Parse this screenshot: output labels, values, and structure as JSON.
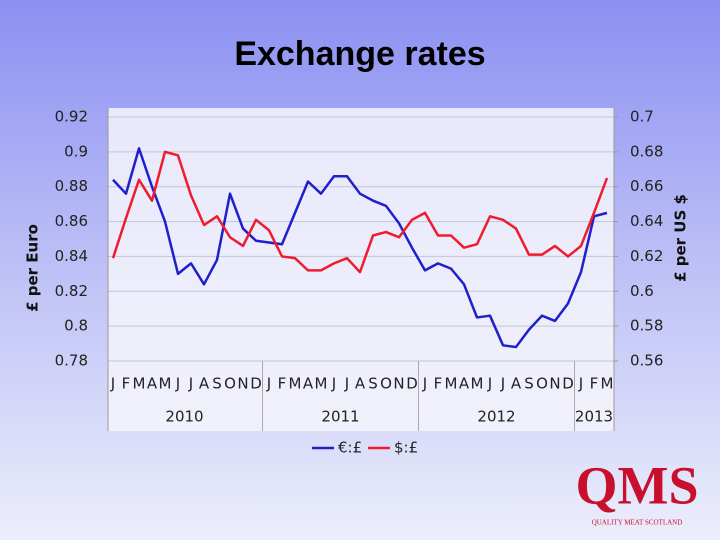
{
  "chart_data": {
    "type": "line",
    "title": "Exchange rates",
    "y_label": "£ per Euro",
    "y2_label": "£ per US $",
    "categories": [
      "J",
      "F",
      "M",
      "A",
      "M",
      "J",
      "J",
      "A",
      "S",
      "O",
      "N",
      "D",
      "J",
      "F",
      "M",
      "A",
      "M",
      "J",
      "J",
      "A",
      "S",
      "O",
      "N",
      "D",
      "J",
      "F",
      "M",
      "A",
      "M",
      "J",
      "J",
      "A",
      "S",
      "O",
      "N",
      "D",
      "J",
      "F",
      "M"
    ],
    "years": [
      "2010",
      "2011",
      "2012",
      "2013"
    ],
    "series": [
      {
        "name": "€:£",
        "color": "#1f1fcc",
        "values": [
          0.884,
          0.876,
          0.902,
          0.88,
          0.86,
          0.83,
          0.836,
          0.824,
          0.838,
          0.876,
          0.856,
          0.849,
          0.848,
          0.847,
          0.865,
          0.883,
          0.876,
          0.886,
          0.886,
          0.876,
          0.872,
          0.869,
          0.859,
          0.845,
          0.832,
          0.836,
          0.833,
          0.824,
          0.805,
          0.806,
          0.789,
          0.788,
          0.798,
          0.806,
          0.803,
          0.813,
          0.831,
          0.863,
          0.865
        ]
      },
      {
        "name": "$:£",
        "color": "#ee1c2e",
        "axis": "y2",
        "values": [
          0.619,
          0.642,
          0.664,
          0.652,
          0.68,
          0.678,
          0.655,
          0.638,
          0.643,
          0.631,
          0.626,
          0.641,
          0.635,
          0.62,
          0.619,
          0.612,
          0.612,
          0.616,
          0.619,
          0.611,
          0.632,
          0.634,
          0.631,
          0.641,
          0.645,
          0.632,
          0.632,
          0.625,
          0.627,
          0.643,
          0.641,
          0.636,
          0.621,
          0.621,
          0.626,
          0.62,
          0.626,
          0.645,
          0.665
        ]
      }
    ],
    "ylim": [
      0.78,
      0.92
    ],
    "yticks": [
      0.78,
      0.8,
      0.82,
      0.84,
      0.86,
      0.88,
      0.9,
      0.92
    ],
    "y2lim": [
      0.56,
      0.7
    ],
    "y2ticks": [
      0.56,
      0.58,
      0.6,
      0.62,
      0.64,
      0.66,
      0.68,
      0.7
    ],
    "grid": true,
    "legend": "bottom"
  },
  "logo": {
    "mark": "QMS",
    "tagline": "QUALITY MEAT SCOTLAND"
  }
}
